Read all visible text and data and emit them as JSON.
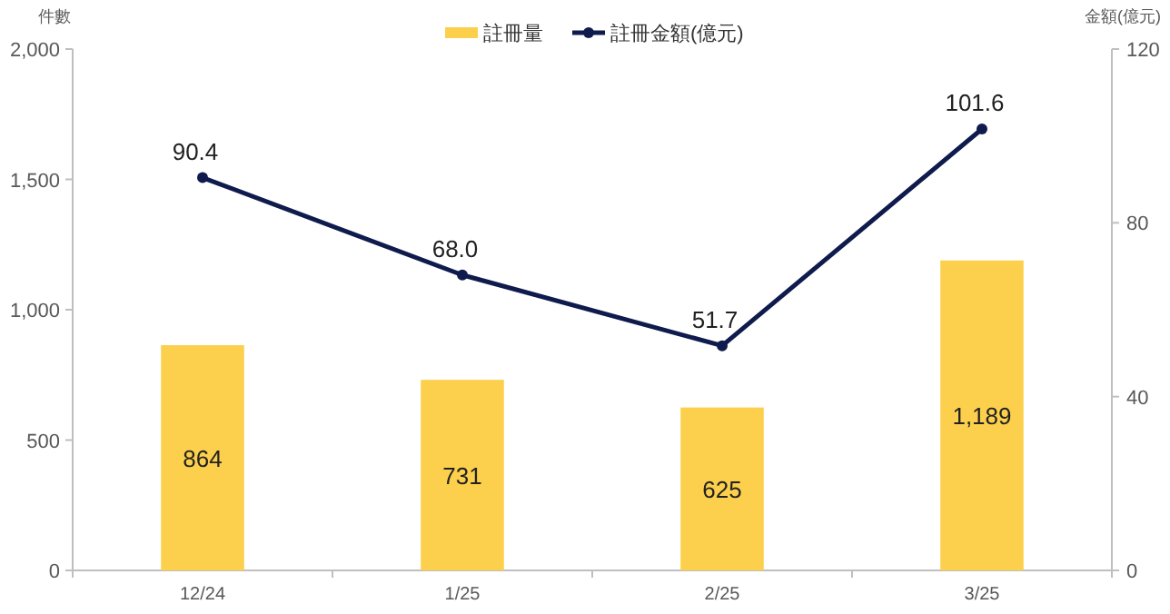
{
  "chart_data": {
    "type": "bar",
    "categories": [
      "12/24",
      "1/25",
      "2/25",
      "3/25"
    ],
    "ylabel": "件數",
    "y2label": "金額(億元)",
    "ylim": [
      0,
      2000
    ],
    "yticks": [
      0,
      {
        "value": 500,
        "label": "500"
      },
      {
        "value": 1000,
        "label": "1,000"
      },
      {
        "value": 1500,
        "label": "1,500"
      },
      {
        "value": 2000,
        "label": "2,000"
      }
    ],
    "y2lim": [
      0,
      120
    ],
    "y2ticks": [
      0,
      40,
      80,
      120
    ],
    "legend": "top",
    "series": [
      {
        "name": "註冊量",
        "color": "#fcd04c",
        "values": [
          864,
          731,
          625,
          1189
        ],
        "value_labels": [
          "864",
          "731",
          "625",
          "1,189"
        ]
      },
      {
        "name": "註冊金額(億元)",
        "type": "line",
        "axis": "y2",
        "color": "#0f1b4c",
        "marker": "circle",
        "values": [
          90.4,
          68.0,
          51.7,
          101.6
        ],
        "value_labels": [
          "90.4",
          "68.0",
          "51.7",
          "101.6"
        ]
      }
    ]
  }
}
